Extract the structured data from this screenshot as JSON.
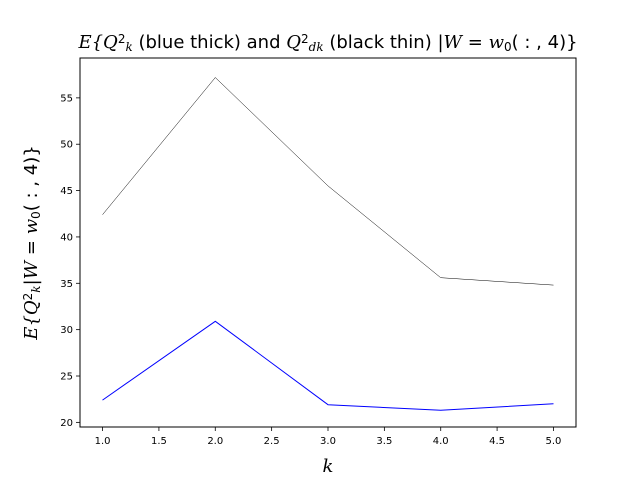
{
  "chart_data": {
    "type": "line",
    "title": {
      "parts": [
        {
          "t": "E{Q",
          "math": true
        },
        {
          "t": "2",
          "sup": true,
          "math": false
        },
        {
          "t": "k",
          "sub": true,
          "math": true
        },
        {
          "t": " (blue thick) and ",
          "math": false
        },
        {
          "t": "Q",
          "math": true
        },
        {
          "t": "2",
          "sup": true,
          "math": false
        },
        {
          "t": "dk",
          "sub": true,
          "math": true
        },
        {
          "t": " (black thin) |",
          "math": false
        },
        {
          "t": "W",
          "math": true
        },
        {
          "t": " = ",
          "math": false
        },
        {
          "t": "w",
          "math": true
        },
        {
          "t": "0",
          "sub": true,
          "math": false
        },
        {
          "t": "( : , 4)}",
          "math": false
        }
      ]
    },
    "xlabel": "k",
    "ylabel": {
      "parts": [
        {
          "t": "E{Q",
          "math": true
        },
        {
          "t": "2",
          "sup": true,
          "math": false
        },
        {
          "t": "k",
          "sub": true,
          "math": true
        },
        {
          "t": "|",
          "math": false
        },
        {
          "t": "W",
          "math": true
        },
        {
          "t": " = ",
          "math": false
        },
        {
          "t": "w",
          "math": true
        },
        {
          "t": "0",
          "sub": true,
          "math": false
        },
        {
          "t": "( : , 4)}",
          "math": false
        }
      ]
    },
    "xlim": [
      0.8,
      5.2
    ],
    "ylim": [
      19.5,
      59.3
    ],
    "xticks": [
      1.0,
      1.5,
      2.0,
      2.5,
      3.0,
      3.5,
      4.0,
      4.5,
      5.0
    ],
    "xtick_labels": [
      "1.0",
      "1.5",
      "2.0",
      "2.5",
      "3.0",
      "3.5",
      "4.0",
      "4.5",
      "5.0"
    ],
    "yticks": [
      20,
      25,
      30,
      35,
      40,
      45,
      50,
      55
    ],
    "ytick_labels": [
      "20",
      "25",
      "30",
      "35",
      "40",
      "45",
      "50",
      "55"
    ],
    "x": [
      1,
      2,
      3,
      4,
      5
    ],
    "series": [
      {
        "color": "#0000ff",
        "line": "thick",
        "values": [
          22.4,
          30.9,
          21.9,
          21.3,
          22.0
        ]
      },
      {
        "color": "#000000",
        "line": "thin",
        "values": [
          42.4,
          57.2,
          45.5,
          35.6,
          34.8
        ]
      }
    ],
    "grid": false,
    "legend": "none"
  }
}
